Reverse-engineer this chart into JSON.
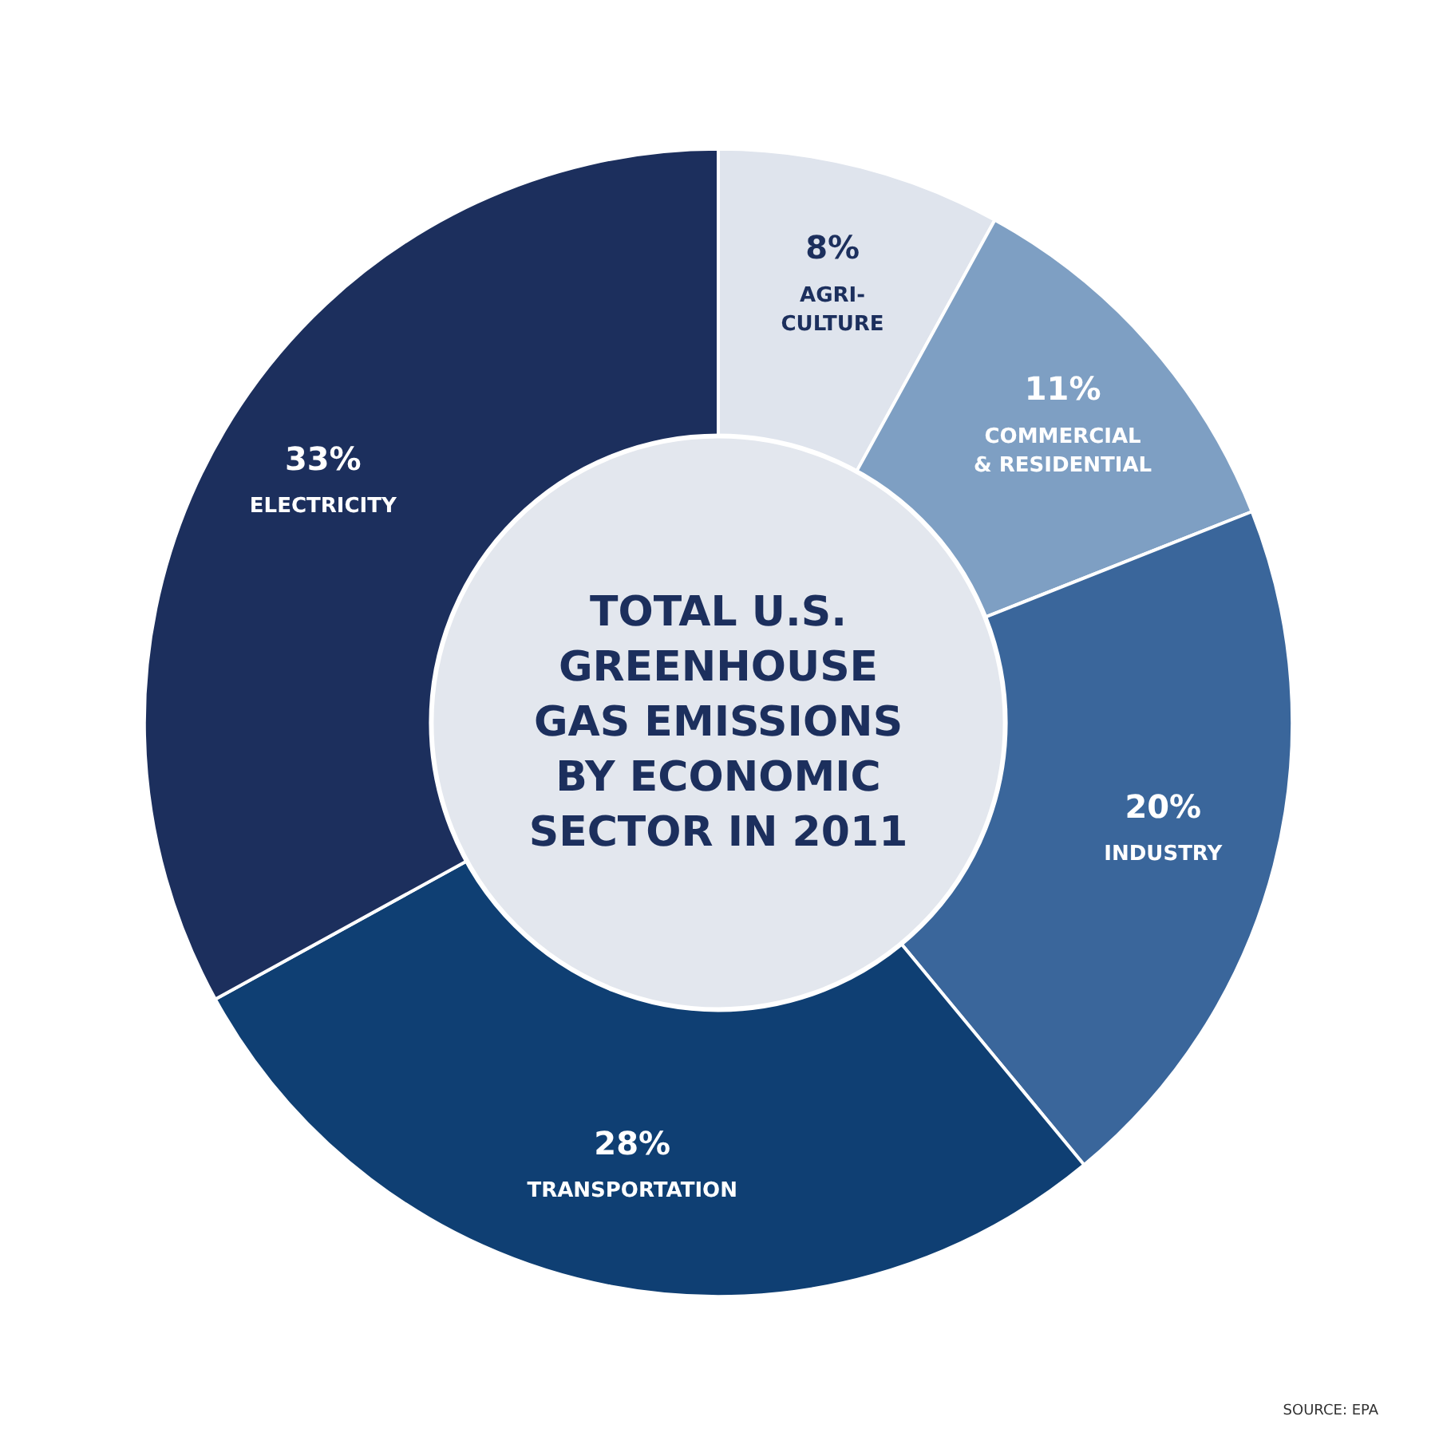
{
  "chart_data": {
    "type": "donut",
    "title": "TOTAL U.S.\nGREENHOUSE\nGAS EMISSIONS\nBY ECONOMIC\nSECTOR IN 2011",
    "categories": [
      "AGRI-\nCULTURE",
      "COMMERCIAL\n& RESIDENTIAL",
      "INDUSTRY",
      "TRANSPORTATION",
      "ELECTRICITY"
    ],
    "values": [
      8,
      11,
      20,
      28,
      33
    ],
    "value_labels": [
      "8%",
      "11%",
      "20%",
      "28%",
      "33%"
    ],
    "colors": [
      "#dfe4ed",
      "#7e9fc3",
      "#3a669b",
      "#0f3f73",
      "#1c2f5d"
    ],
    "annotations": [
      "SOURCE: EPA"
    ]
  }
}
